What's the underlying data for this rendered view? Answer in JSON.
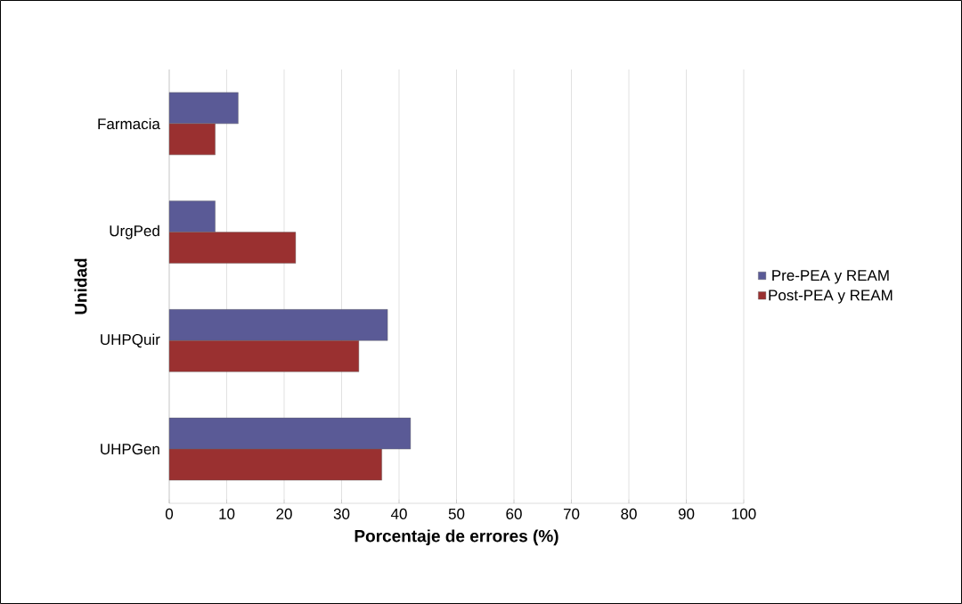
{
  "chart_data": {
    "type": "bar",
    "orientation": "horizontal",
    "xlabel": "Porcentaje de errores (%)",
    "ylabel": "Unidad",
    "categories": [
      "Farmacia",
      "UrgPed",
      "UHPQuir",
      "UHPGen"
    ],
    "series": [
      {
        "name": "Pre-PEA y REAM",
        "color": "#5a5a96",
        "values": [
          12,
          8,
          38,
          42
        ]
      },
      {
        "name": "Post-PEA y REAM",
        "color": "#9a3030",
        "values": [
          8,
          22,
          33,
          37
        ]
      }
    ],
    "xlim": [
      0,
      100
    ],
    "xticks": [
      0,
      10,
      20,
      30,
      40,
      50,
      60,
      70,
      80,
      90,
      100
    ],
    "grid": "x",
    "legend": "right"
  }
}
